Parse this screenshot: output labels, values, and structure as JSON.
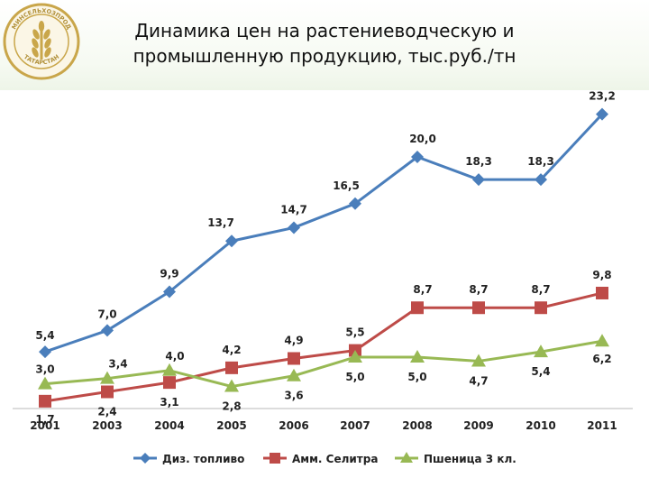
{
  "title_lines": [
    "Динамика цен на растениеводческую и",
    "промышленную продукцию, тыс.руб./тн"
  ],
  "logo": {
    "icon": "wheat-emblem-icon",
    "text_top": "МИНСЕЛЬХОЗПРОД",
    "text_bottom": "ТАТАРСТАН",
    "color": "#c9a64a"
  },
  "chart_data": {
    "type": "line",
    "title": "Динамика цен на растениеводческую и промышленную продукцию, тыс.руб./тн",
    "xlabel": "",
    "ylabel": "",
    "categories": [
      "2001",
      "2003",
      "2004",
      "2005",
      "2006",
      "2007",
      "2008",
      "2009",
      "2010",
      "2011"
    ],
    "ylim": [
      0,
      25
    ],
    "grid": false,
    "legend": "bottom",
    "series": [
      {
        "name": "Диз. топливо",
        "values": [
          5.4,
          7.0,
          9.9,
          13.7,
          14.7,
          16.5,
          20.0,
          18.3,
          18.3,
          23.2
        ],
        "labels": [
          "5,4",
          "7,0",
          "9,9",
          "13,7",
          "14,7",
          "16,5",
          "20,0",
          "18,3",
          "18,3",
          "23,2"
        ],
        "color": "#4a7ebb",
        "marker": "diamond"
      },
      {
        "name": "Амм. Селитра",
        "values": [
          1.7,
          2.4,
          3.1,
          4.2,
          4.9,
          5.5,
          8.7,
          8.7,
          8.7,
          9.8
        ],
        "labels": [
          "1,7",
          "2,4",
          "3,1",
          "4,2",
          "4,9",
          "5,5",
          "8,7",
          "8,7",
          "8,7",
          "9,8"
        ],
        "color": "#be4b48",
        "marker": "square"
      },
      {
        "name": "Пшеница 3 кл.",
        "values": [
          3.0,
          3.4,
          4.0,
          2.8,
          3.6,
          5.0,
          5.0,
          4.7,
          5.4,
          6.2
        ],
        "labels": [
          "3,0",
          "3,4",
          "4,0",
          "2,8",
          "3,6",
          "5,0",
          "5,0",
          "4,7",
          "5,4",
          "6,2"
        ],
        "color": "#98b954",
        "marker": "triangle"
      }
    ]
  }
}
